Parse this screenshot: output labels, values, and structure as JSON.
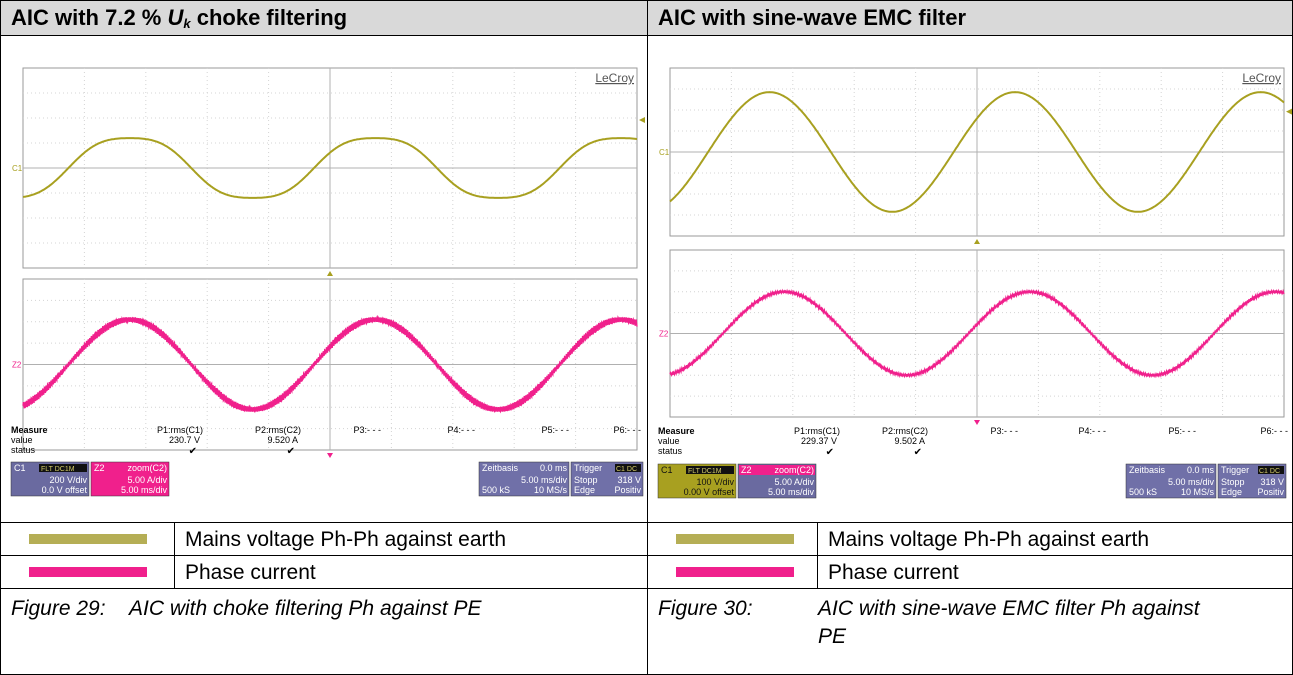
{
  "panels": [
    {
      "header": {
        "pre": "AIC with 7.2 % ",
        "sym": "U",
        "sub": "k",
        "post": " choke filtering"
      },
      "brand": "LeCroy",
      "ch1_label": "C1",
      "ch2_label": "Z2",
      "measure": {
        "title": "Measure",
        "row_value": "value",
        "row_status": "status",
        "params": [
          {
            "name": "P1:rms(C1)",
            "value": "230.7 V",
            "status": "✔"
          },
          {
            "name": "P2:rms(C2)",
            "value": "9.520 A",
            "status": "✔"
          },
          {
            "name": "P3:- - -",
            "value": "",
            "status": ""
          },
          {
            "name": "P4:- - -",
            "value": "",
            "status": ""
          },
          {
            "name": "P5:- - -",
            "value": "",
            "status": ""
          },
          {
            "name": "P6:- - -",
            "value": "",
            "status": ""
          }
        ]
      },
      "c1_box": {
        "name": "C1",
        "tags": [
          "FLT",
          "DC1M"
        ],
        "line1": "200 V/div",
        "line2": "0.0 V offset"
      },
      "z2_box": {
        "name": "Z2",
        "title": "zoom(C2)",
        "line1": "5.00 A/div",
        "line2": "5.00 ms/div"
      },
      "timebase": {
        "title": "Zeitbasis",
        "offset": "0.0 ms",
        "line1": "5.00 ms/div",
        "kS": "500 kS",
        "rate": "10 MS/s"
      },
      "trigger": {
        "title": "Trigger",
        "tag": "C1 DC",
        "mode": "Stopp",
        "level": "318 V",
        "type": "Edge",
        "slope": "Positiv"
      },
      "legend": [
        {
          "label": "Mains voltage Ph-Ph against earth",
          "color": "#b5ae55"
        },
        {
          "label": "Phase current",
          "color": "#f0208c"
        }
      ],
      "caption": {
        "num": "Figure 29:",
        "text": "AIC with choke filtering Ph against PE"
      }
    },
    {
      "header": {
        "pre": "AIC with sine-wave EMC filter",
        "sym": "",
        "sub": "",
        "post": ""
      },
      "brand": "LeCroy",
      "ch1_label": "C1",
      "ch2_label": "Z2",
      "measure": {
        "title": "Measure",
        "row_value": "value",
        "row_status": "status",
        "params": [
          {
            "name": "P1:rms(C1)",
            "value": "229.37 V",
            "status": "✔"
          },
          {
            "name": "P2:rms(C2)",
            "value": "9.502 A",
            "status": "✔"
          },
          {
            "name": "P3:- - -",
            "value": "",
            "status": ""
          },
          {
            "name": "P4:- - -",
            "value": "",
            "status": ""
          },
          {
            "name": "P5:- - -",
            "value": "",
            "status": ""
          },
          {
            "name": "P6:- - -",
            "value": "",
            "status": ""
          }
        ]
      },
      "c1_box": {
        "name": "C1",
        "tags": [
          "FLT",
          "DC1M"
        ],
        "line1": "100 V/div",
        "line2": "0.00 V offset"
      },
      "z2_box": {
        "name": "Z2",
        "title": "zoom(C2)",
        "line1": "5.00 A/div",
        "line2": "5.00 ms/div"
      },
      "timebase": {
        "title": "Zeitbasis",
        "offset": "0.0 ms",
        "line1": "5.00 ms/div",
        "kS": "500 kS",
        "rate": "10 MS/s"
      },
      "trigger": {
        "title": "Trigger",
        "tag": "C1 DC",
        "mode": "Stopp",
        "level": "318 V",
        "type": "Edge",
        "slope": "Positiv"
      },
      "legend": [
        {
          "label": "Mains voltage Ph-Ph against earth",
          "color": "#b5ae55"
        },
        {
          "label": "Phase current",
          "color": "#f0208c"
        }
      ],
      "caption": {
        "num": "Figure 30:",
        "text": "AIC with sine-wave EMC filter Ph against PE"
      }
    }
  ],
  "chart_data": [
    {
      "type": "line",
      "xlabel": "",
      "ylabel": "",
      "x_unit": "ms",
      "x_range": [
        -25,
        25
      ],
      "x_per_div": 5,
      "grid": true,
      "series": [
        {
          "name": "C1",
          "color": "#a8a020",
          "units_per_div": 200,
          "offset_div": 0,
          "amplitude_div": 1.3,
          "period_ms": 20,
          "phase_ms": -21.3,
          "shape": "choke-filtered sine"
        },
        {
          "name": "Z2",
          "color": "#f0208c",
          "units_per_div": 5,
          "offset_div": 0,
          "amplitude_div": 2.1,
          "period_ms": 20,
          "phase_ms": -21.3,
          "ripple_div": 0.18,
          "shape": "rippled sine"
        }
      ],
      "measurements": {
        "rms_C1_V": 230.7,
        "rms_C2_A": 9.52
      }
    },
    {
      "type": "line",
      "xlabel": "",
      "ylabel": "",
      "x_unit": "ms",
      "x_range": [
        -25,
        25
      ],
      "x_per_div": 5,
      "grid": true,
      "series": [
        {
          "name": "C1",
          "color": "#a8a020",
          "units_per_div": 100,
          "offset_div": 0,
          "amplitude_div": 2.85,
          "period_ms": 20,
          "phase_ms": -21.9,
          "shape": "clean sine"
        },
        {
          "name": "Z2",
          "color": "#f0208c",
          "units_per_div": 5,
          "offset_div": 0,
          "amplitude_div": 2.0,
          "period_ms": 20,
          "phase_ms": -20.7,
          "ripple_div": 0.08,
          "shape": "rippled sine"
        }
      ],
      "measurements": {
        "rms_C1_V": 229.37,
        "rms_C2_A": 9.502
      }
    }
  ]
}
